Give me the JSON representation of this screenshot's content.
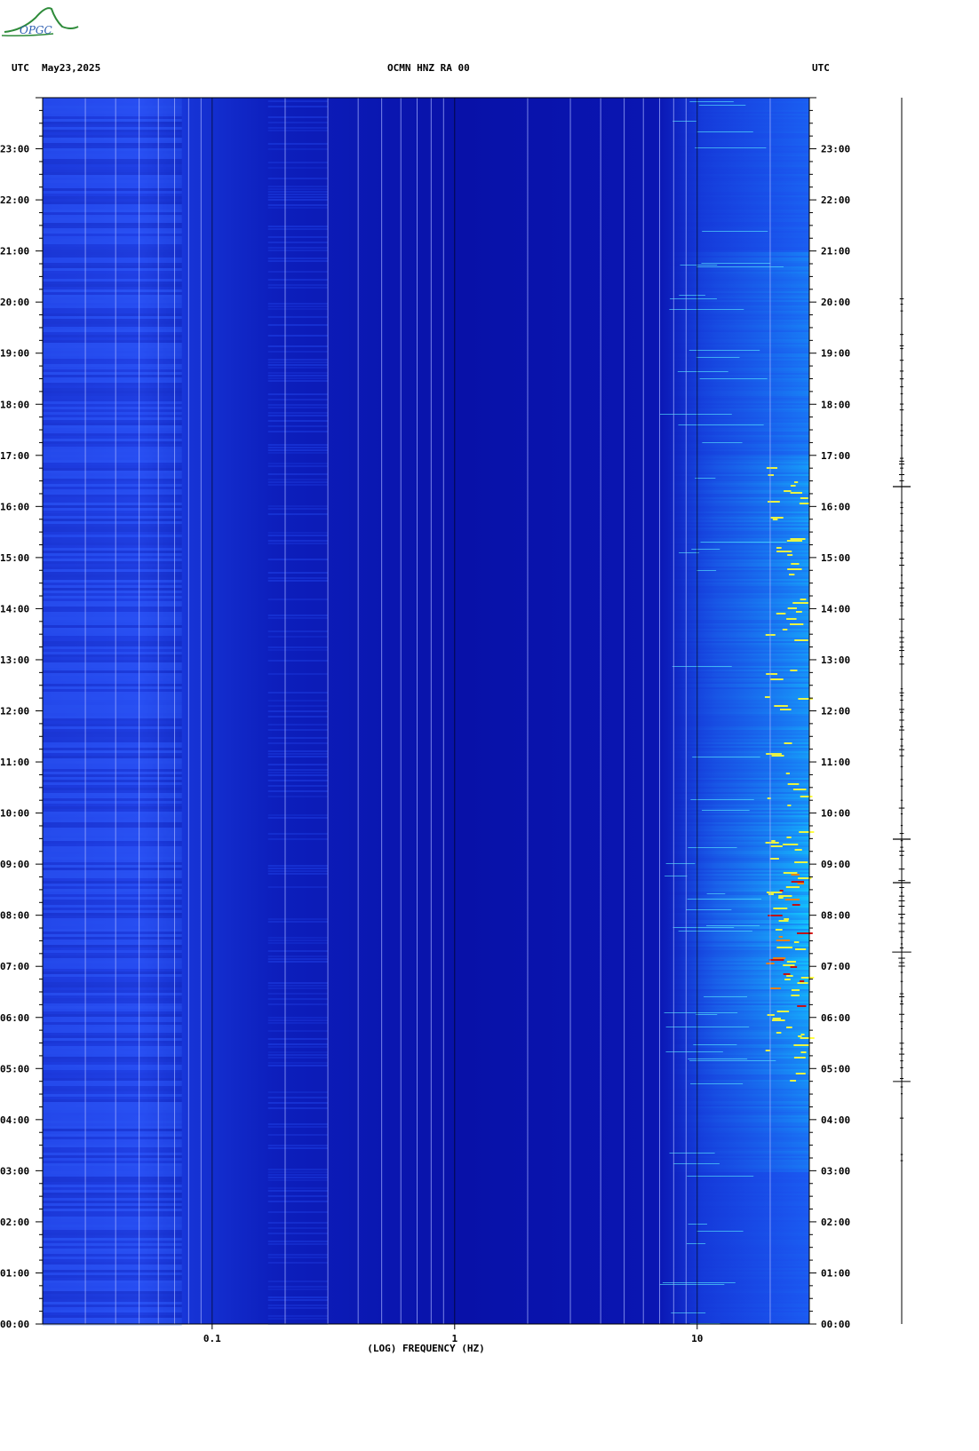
{
  "header": {
    "left_tz": "UTC",
    "date": "May23,2025",
    "station": "OCMN HNZ RA 00",
    "right_tz": "UTC"
  },
  "logo": {
    "text": "OPGC"
  },
  "chart_data": {
    "type": "heatmap",
    "title": "OCMN HNZ RA 00",
    "xlabel": "(LOG) FREQUENCY (HZ)",
    "xscale": "log",
    "xlim": [
      0.02,
      29
    ],
    "x_ticks": [
      {
        "value": 0.1,
        "label": "0.1"
      },
      {
        "value": 1,
        "label": "1"
      },
      {
        "value": 10,
        "label": "10"
      }
    ],
    "ylim": [
      "00:00",
      "24:00"
    ],
    "y_ticks": [
      "00:00",
      "01:00",
      "02:00",
      "03:00",
      "04:00",
      "05:00",
      "06:00",
      "07:00",
      "08:00",
      "09:00",
      "10:00",
      "11:00",
      "12:00",
      "13:00",
      "14:00",
      "15:00",
      "16:00",
      "17:00",
      "18:00",
      "19:00",
      "20:00",
      "21:00",
      "22:00",
      "23:00"
    ],
    "colormap": [
      "#0000a8",
      "#1a3cf0",
      "#00c8ff",
      "#ffff00",
      "#c00000"
    ],
    "seismogram_trace": true
  }
}
